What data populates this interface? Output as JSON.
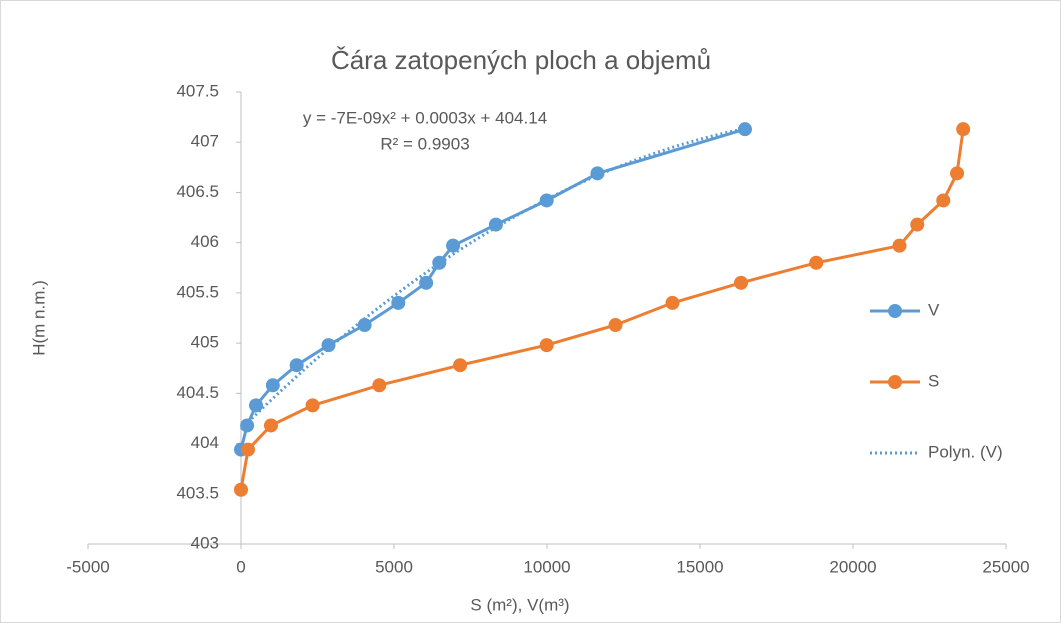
{
  "chart_data": {
    "type": "scatter-line",
    "title": "Čára zatopených ploch a objemů",
    "xlabel": "S (m²), V(m³)",
    "ylabel": "H(m n.m.)",
    "xlim": [
      -5000,
      25000
    ],
    "xticks": [
      -5000,
      0,
      5000,
      10000,
      15000,
      20000,
      25000
    ],
    "ylim": [
      403,
      407.5
    ],
    "yticks": [
      403,
      403.5,
      404,
      404.5,
      405,
      405.5,
      406,
      406.5,
      407,
      407.5
    ],
    "legend": "right",
    "series": [
      {
        "name": "V",
        "color": "#5b9bd5",
        "x": [
          0,
          200,
          490,
          1040,
          1820,
          2860,
          4040,
          5140,
          6050,
          6480,
          6930,
          8330,
          9990,
          11650,
          16470
        ],
        "values": [
          403.94,
          404.18,
          404.38,
          404.58,
          404.78,
          404.98,
          405.18,
          405.4,
          405.6,
          405.8,
          405.97,
          406.18,
          406.42,
          406.69,
          407.13
        ]
      },
      {
        "name": "S",
        "color": "#ed7d31",
        "x": [
          0,
          230,
          980,
          2340,
          4520,
          7160,
          9990,
          12240,
          14100,
          16340,
          18800,
          21520,
          22100,
          22950,
          23400,
          23600
        ],
        "values": [
          403.54,
          403.94,
          404.18,
          404.38,
          404.58,
          404.78,
          404.98,
          405.18,
          405.4,
          405.6,
          405.8,
          405.97,
          406.18,
          406.42,
          406.69,
          407.13
        ]
      }
    ],
    "trendline": {
      "name": "Polyn. (V)",
      "series": 0,
      "type": "polynomial",
      "order": 2,
      "color": "#5b9bd5",
      "equation": "y = -7E-09x² + 0.0003x + 404.14",
      "r2": "R² = 0.9903"
    }
  }
}
